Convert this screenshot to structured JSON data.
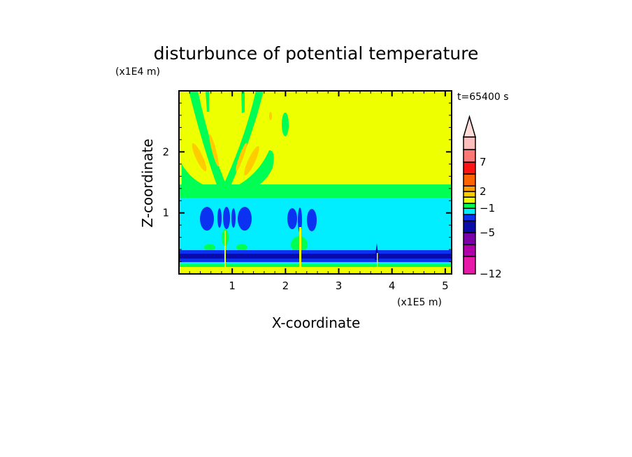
{
  "chart_data": {
    "type": "heatmap",
    "title": "disturbunce of potential temperature",
    "xlabel": "X-coordinate",
    "ylabel": "Z-coordinate",
    "x_scale_label": "(x1E5 m)",
    "y_scale_label": "(x1E4 m)",
    "time_label": "t=65400 s",
    "xlim": [
      0,
      5.12
    ],
    "ylim": [
      0,
      3.0
    ],
    "x_ticks": [
      "1",
      "2",
      "3",
      "4",
      "5"
    ],
    "x_tick_values": [
      1,
      2,
      3,
      4,
      5
    ],
    "y_ticks": [
      "1",
      "2"
    ],
    "y_tick_values": [
      1,
      2
    ],
    "grid": false,
    "colorbar": {
      "colors": [
        "#e619a8",
        "#b000a8",
        "#7a00a8",
        "#0a0aa8",
        "#0a32f0",
        "#00eeff",
        "#00ff55",
        "#eeff00",
        "#ffcc00",
        "#ffa000",
        "#ff6400",
        "#ff1414",
        "#ff7878",
        "#ffbebe",
        "#ffdcd8"
      ],
      "labels": [
        "-12",
        "-5",
        "-1",
        "2",
        "7"
      ],
      "label_values": [
        -12,
        -5,
        -1,
        2,
        7
      ]
    },
    "field_regions": [
      {
        "name": "upper-layer",
        "z_range": [
          1.45,
          3.0
        ],
        "color": "#eeff00"
      },
      {
        "name": "transition-band",
        "z_range": [
          1.25,
          1.45
        ],
        "color": "#00ff55"
      },
      {
        "name": "middle-layer",
        "z_range": [
          0.4,
          1.25
        ],
        "color": "#00eeff"
      },
      {
        "name": "low-negative-band",
        "z_range": [
          0.2,
          0.4
        ],
        "color": "#0a32f0"
      },
      {
        "name": "surface-layer",
        "z_range": [
          0,
          0.12
        ],
        "color": "#eeff00"
      }
    ],
    "mountain_x": [
      0.85,
      2.3,
      3.7
    ]
  }
}
